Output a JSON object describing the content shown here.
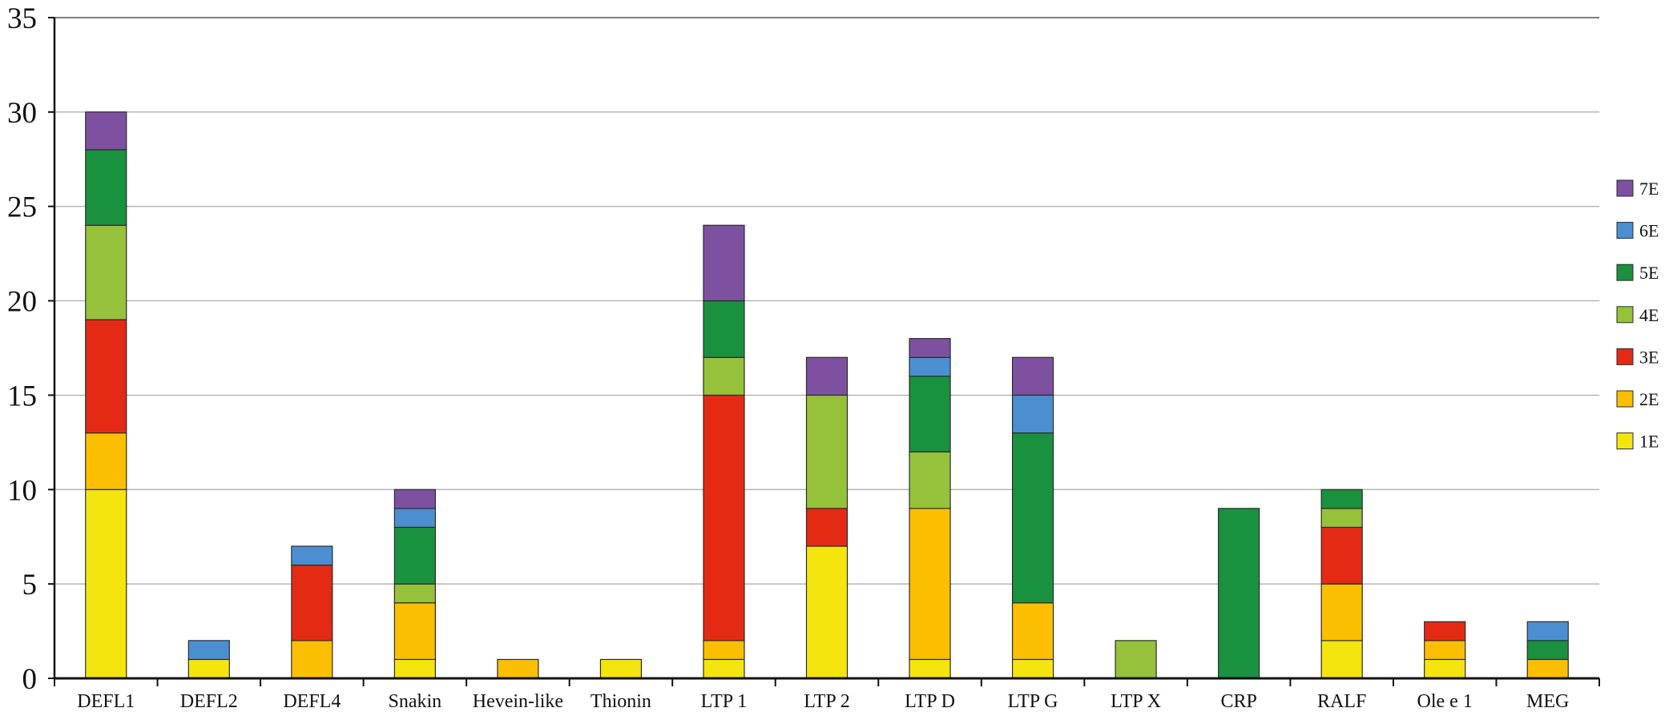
{
  "chart_data": {
    "type": "bar",
    "stacked": true,
    "title": "",
    "xlabel": "",
    "ylabel": "",
    "ylim": [
      0,
      35
    ],
    "yticks": [
      0,
      5,
      10,
      15,
      20,
      25,
      30,
      35
    ],
    "grid": true,
    "legend_position": "right",
    "categories": [
      "DEFL1",
      "DEFL2",
      "DEFL4",
      "Snakin",
      "Hevein-like",
      "Thionin",
      "LTP 1",
      "LTP 2",
      "LTP D",
      "LTP G",
      "LTP X",
      "CRP",
      "RALF",
      "Ole e 1",
      "MEG"
    ],
    "series": [
      {
        "name": "1E",
        "color": "#f5e50f",
        "values": [
          10,
          1,
          0,
          1,
          0,
          1,
          1,
          7,
          1,
          1,
          0,
          0,
          2,
          1,
          0
        ]
      },
      {
        "name": "2E",
        "color": "#fbbf00",
        "values": [
          3,
          0,
          2,
          3,
          1,
          0,
          1,
          0,
          8,
          3,
          0,
          0,
          3,
          1,
          1
        ]
      },
      {
        "name": "3E",
        "color": "#e42a14",
        "values": [
          6,
          0,
          4,
          0,
          0,
          0,
          13,
          2,
          0,
          0,
          0,
          0,
          3,
          1,
          0
        ]
      },
      {
        "name": "4E",
        "color": "#96c13b",
        "values": [
          5,
          0,
          0,
          1,
          0,
          0,
          2,
          6,
          3,
          0,
          2,
          0,
          1,
          0,
          0
        ]
      },
      {
        "name": "5E",
        "color": "#1a913f",
        "values": [
          4,
          0,
          0,
          3,
          0,
          0,
          3,
          0,
          4,
          9,
          0,
          9,
          1,
          0,
          1
        ]
      },
      {
        "name": "6E",
        "color": "#4b8fd1",
        "values": [
          0,
          1,
          1,
          1,
          0,
          0,
          0,
          0,
          1,
          2,
          0,
          0,
          0,
          0,
          1
        ]
      },
      {
        "name": "7E",
        "color": "#7d51a0",
        "values": [
          2,
          0,
          0,
          1,
          0,
          0,
          4,
          2,
          1,
          2,
          0,
          0,
          0,
          0,
          0
        ]
      }
    ]
  }
}
